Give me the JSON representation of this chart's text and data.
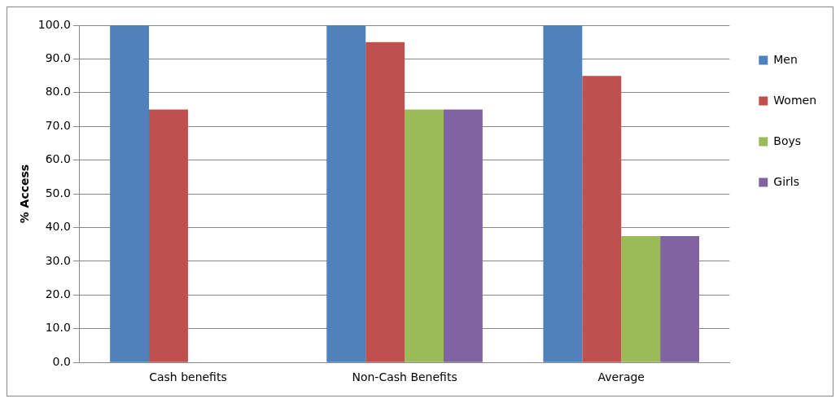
{
  "chart_data": {
    "type": "bar",
    "ylabel": "% Access",
    "categories": [
      "Cash benefits",
      "Non-Cash Benefits",
      "Average"
    ],
    "series": [
      {
        "name": "Men",
        "color": "#4f81bd",
        "values": [
          100,
          100,
          100
        ]
      },
      {
        "name": "Women",
        "color": "#c0504d",
        "values": [
          75,
          95,
          85
        ]
      },
      {
        "name": "Boys",
        "color": "#9bbb59",
        "values": [
          0,
          75,
          37.5
        ]
      },
      {
        "name": "Girls",
        "color": "#8064a2",
        "values": [
          0,
          75,
          37.5
        ]
      }
    ],
    "ylim": [
      0,
      100
    ],
    "yticks": [
      {
        "value": 0,
        "label": "0.0"
      },
      {
        "value": 10,
        "label": "10.0"
      },
      {
        "value": 20,
        "label": "20.0"
      },
      {
        "value": 30,
        "label": "30.0"
      },
      {
        "value": 40,
        "label": "40.0"
      },
      {
        "value": 50,
        "label": "50.0"
      },
      {
        "value": 60,
        "label": "60.0"
      },
      {
        "value": 70,
        "label": "70.0"
      },
      {
        "value": 80,
        "label": "80.0"
      },
      {
        "value": 90,
        "label": "90.0"
      },
      {
        "value": 100,
        "label": "100.0"
      }
    ],
    "grid": "y",
    "legend": "right"
  }
}
